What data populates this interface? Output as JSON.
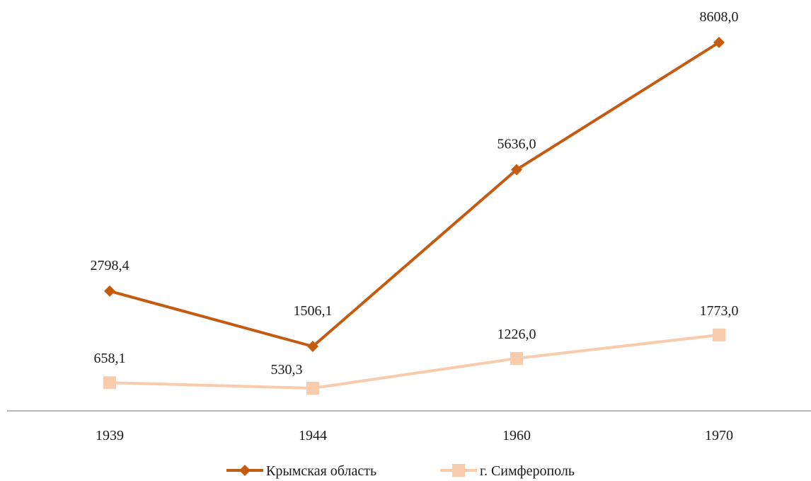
{
  "chart_data": {
    "type": "line",
    "categories": [
      "1939",
      "1944",
      "1960",
      "1970"
    ],
    "series": [
      {
        "name": "Крымская область",
        "values": [
          2798.4,
          1506.1,
          5636.0,
          8608.0
        ],
        "labels": [
          "2798,4",
          "1506,1",
          "5636,0",
          "8608,0"
        ],
        "color": "#C55A11",
        "marker": "diamond"
      },
      {
        "name": "г. Симферополь",
        "values": [
          658.1,
          530.3,
          1226.0,
          1773.0
        ],
        "labels": [
          "658,1",
          "530,3",
          "1226,0",
          "1773,0"
        ],
        "color": "#F8CBAD",
        "marker": "square"
      }
    ],
    "title": "",
    "xlabel": "",
    "ylabel": "",
    "ylim": [
      0,
      9600
    ],
    "grid": false,
    "legend": "bottom"
  }
}
